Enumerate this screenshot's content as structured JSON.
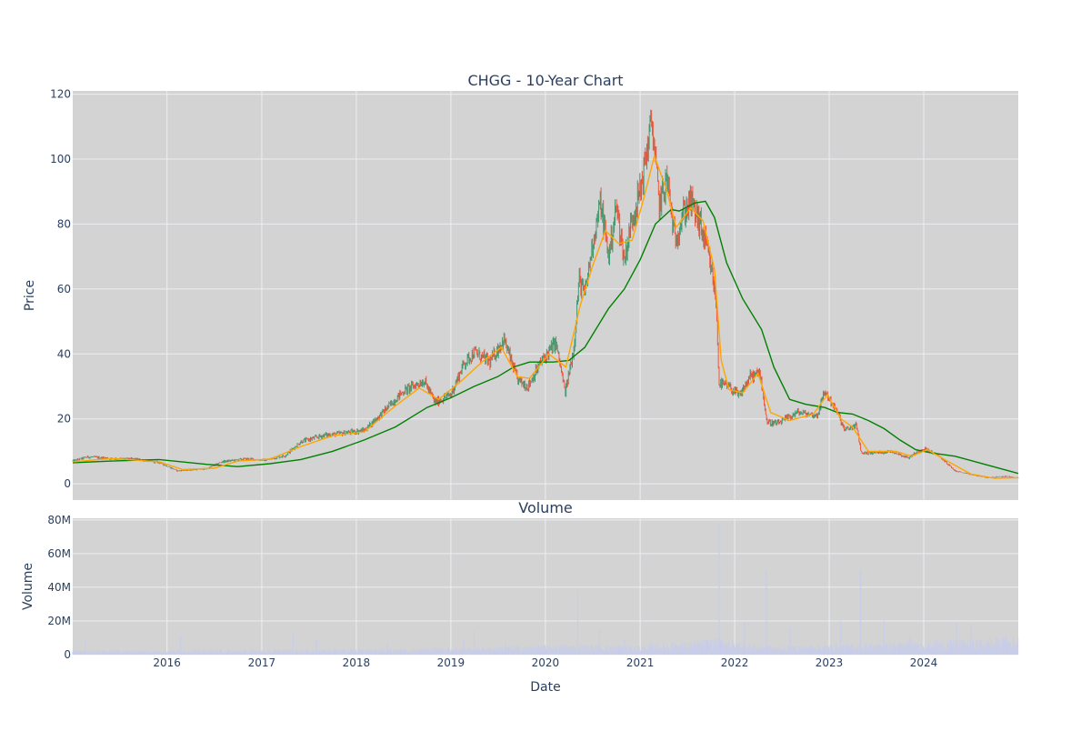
{
  "chart_data": [
    {
      "type": "candlestick",
      "title": "CHGG - 10-Year Chart",
      "xlabel": "",
      "ylabel": "Price",
      "xlim": [
        "2015-01-02",
        "2024-12-31"
      ],
      "ylim": [
        -5,
        121
      ],
      "y_ticks": [
        "0",
        "20",
        "40",
        "60",
        "80",
        "100",
        "120"
      ],
      "grid": true,
      "legend": "none",
      "colors": {
        "increasing": "#3d9970",
        "decreasing": "#ef553b",
        "ma_fast": "#ffa500",
        "ma_slow": "#008000",
        "background": "#d3d3d3",
        "grid": "#ebeef3"
      },
      "series": [
        {
          "kind": "approx_close_path",
          "points": [
            [
              "2015-01-02",
              7.0
            ],
            [
              "2015-03-01",
              8.3
            ],
            [
              "2015-06-01",
              7.8
            ],
            [
              "2015-09-01",
              7.6
            ],
            [
              "2015-12-01",
              6.6
            ],
            [
              "2016-02-10",
              4.0
            ],
            [
              "2016-04-01",
              4.3
            ],
            [
              "2016-06-01",
              4.6
            ],
            [
              "2016-08-01",
              6.8
            ],
            [
              "2016-11-01",
              7.7
            ],
            [
              "2017-01-15",
              7.3
            ],
            [
              "2017-04-01",
              8.7
            ],
            [
              "2017-06-01",
              13.0
            ],
            [
              "2017-09-01",
              15.0
            ],
            [
              "2017-11-01",
              15.5
            ],
            [
              "2018-02-01",
              16.5
            ],
            [
              "2018-04-01",
              21.0
            ],
            [
              "2018-07-01",
              28.5
            ],
            [
              "2018-09-20",
              31.8
            ],
            [
              "2018-11-01",
              25.0
            ],
            [
              "2019-01-01",
              27.5
            ],
            [
              "2019-02-20",
              37.0
            ],
            [
              "2019-04-01",
              40.5
            ],
            [
              "2019-06-01",
              37.5
            ],
            [
              "2019-07-25",
              44.5
            ],
            [
              "2019-09-15",
              32.0
            ],
            [
              "2019-10-25",
              30.0
            ],
            [
              "2019-12-15",
              37.5
            ],
            [
              "2020-02-10",
              43.5
            ],
            [
              "2020-03-18",
              28.0
            ],
            [
              "2020-04-20",
              42.0
            ],
            [
              "2020-05-10",
              63.0
            ],
            [
              "2020-06-01",
              58.0
            ],
            [
              "2020-07-01",
              74.0
            ],
            [
              "2020-08-01",
              86.5
            ],
            [
              "2020-09-01",
              70.0
            ],
            [
              "2020-10-01",
              85.5
            ],
            [
              "2020-11-01",
              69.0
            ],
            [
              "2020-12-01",
              82.0
            ],
            [
              "2021-01-01",
              90.0
            ],
            [
              "2021-02-15",
              112.0
            ],
            [
              "2021-03-15",
              86.0
            ],
            [
              "2021-04-15",
              94.0
            ],
            [
              "2021-05-15",
              75.0
            ],
            [
              "2021-06-15",
              83.0
            ],
            [
              "2021-07-15",
              87.0
            ],
            [
              "2021-08-20",
              80.0
            ],
            [
              "2021-09-20",
              71.0
            ],
            [
              "2021-10-20",
              58.0
            ],
            [
              "2021-11-02",
              31.0
            ],
            [
              "2021-12-15",
              29.5
            ],
            [
              "2022-01-20",
              27.0
            ],
            [
              "2022-03-01",
              33.0
            ],
            [
              "2022-04-10",
              34.0
            ],
            [
              "2022-05-05",
              19.0
            ],
            [
              "2022-06-15",
              18.5
            ],
            [
              "2022-09-01",
              22.0
            ],
            [
              "2022-11-15",
              21.0
            ],
            [
              "2022-12-15",
              28.5
            ],
            [
              "2023-02-01",
              22.0
            ],
            [
              "2023-03-01",
              16.5
            ],
            [
              "2023-04-15",
              18.0
            ],
            [
              "2023-05-05",
              9.5
            ],
            [
              "2023-06-15",
              9.5
            ],
            [
              "2023-09-01",
              10.0
            ],
            [
              "2023-11-01",
              8.0
            ],
            [
              "2024-01-01",
              11.0
            ],
            [
              "2024-03-01",
              8.5
            ],
            [
              "2024-05-01",
              4.0
            ],
            [
              "2024-07-01",
              2.8
            ],
            [
              "2024-09-01",
              1.9
            ],
            [
              "2024-11-15",
              2.3
            ],
            [
              "2024-12-31",
              1.8
            ]
          ]
        },
        {
          "name": "",
          "kind": "moving_average_fast",
          "color": "#ffa500",
          "points": [
            [
              "2015-01-02",
              6.8
            ],
            [
              "2015-06-01",
              7.8
            ],
            [
              "2015-12-01",
              6.8
            ],
            [
              "2016-03-01",
              4.4
            ],
            [
              "2016-07-01",
              4.8
            ],
            [
              "2016-10-01",
              7.0
            ],
            [
              "2017-02-01",
              7.6
            ],
            [
              "2017-06-01",
              11.5
            ],
            [
              "2017-10-01",
              14.8
            ],
            [
              "2018-02-01",
              16.0
            ],
            [
              "2018-06-01",
              24.0
            ],
            [
              "2018-09-01",
              29.5
            ],
            [
              "2018-11-15",
              26.0
            ],
            [
              "2019-02-01",
              31.0
            ],
            [
              "2019-05-01",
              37.5
            ],
            [
              "2019-07-15",
              42.0
            ],
            [
              "2019-09-15",
              33.0
            ],
            [
              "2019-11-01",
              32.5
            ],
            [
              "2020-01-15",
              40.0
            ],
            [
              "2020-03-20",
              36.0
            ],
            [
              "2020-05-15",
              55.0
            ],
            [
              "2020-07-01",
              67.0
            ],
            [
              "2020-08-20",
              78.0
            ],
            [
              "2020-10-10",
              74.0
            ],
            [
              "2020-12-01",
              75.0
            ],
            [
              "2021-01-15",
              88.0
            ],
            [
              "2021-02-25",
              101.0
            ],
            [
              "2021-04-15",
              90.0
            ],
            [
              "2021-05-20",
              79.0
            ],
            [
              "2021-07-15",
              85.0
            ],
            [
              "2021-09-01",
              81.0
            ],
            [
              "2021-10-15",
              66.0
            ],
            [
              "2021-11-10",
              38.0
            ],
            [
              "2021-12-10",
              29.0
            ],
            [
              "2022-02-01",
              28.0
            ],
            [
              "2022-04-01",
              34.0
            ],
            [
              "2022-05-20",
              22.0
            ],
            [
              "2022-08-01",
              19.5
            ],
            [
              "2022-11-01",
              21.5
            ],
            [
              "2022-12-25",
              27.5
            ],
            [
              "2023-02-15",
              20.0
            ],
            [
              "2023-04-01",
              17.5
            ],
            [
              "2023-06-01",
              10.0
            ],
            [
              "2023-09-15",
              10.0
            ],
            [
              "2023-11-15",
              8.5
            ],
            [
              "2024-01-15",
              10.5
            ],
            [
              "2024-04-01",
              7.0
            ],
            [
              "2024-07-01",
              3.0
            ],
            [
              "2024-10-01",
              1.7
            ],
            [
              "2024-12-31",
              1.9
            ]
          ]
        },
        {
          "name": "",
          "kind": "moving_average_slow",
          "color": "#008000",
          "points": [
            [
              "2015-01-02",
              6.5
            ],
            [
              "2015-06-01",
              7.0
            ],
            [
              "2015-12-01",
              7.5
            ],
            [
              "2016-06-01",
              6.0
            ],
            [
              "2016-10-01",
              5.3
            ],
            [
              "2017-02-01",
              6.2
            ],
            [
              "2017-06-01",
              7.5
            ],
            [
              "2017-10-01",
              10.0
            ],
            [
              "2018-02-01",
              13.5
            ],
            [
              "2018-06-01",
              17.5
            ],
            [
              "2018-10-01",
              23.5
            ],
            [
              "2019-01-01",
              26.5
            ],
            [
              "2019-04-01",
              30.0
            ],
            [
              "2019-07-01",
              33.0
            ],
            [
              "2019-09-01",
              36.0
            ],
            [
              "2019-11-01",
              37.5
            ],
            [
              "2020-02-01",
              37.5
            ],
            [
              "2020-04-01",
              38.0
            ],
            [
              "2020-06-01",
              42.0
            ],
            [
              "2020-09-01",
              54.0
            ],
            [
              "2020-11-01",
              60.0
            ],
            [
              "2021-01-01",
              69.0
            ],
            [
              "2021-03-01",
              80.0
            ],
            [
              "2021-05-01",
              84.5
            ],
            [
              "2021-06-01",
              84.0
            ],
            [
              "2021-08-01",
              86.5
            ],
            [
              "2021-09-10",
              87.0
            ],
            [
              "2021-10-15",
              82.0
            ],
            [
              "2021-12-01",
              68.0
            ],
            [
              "2022-02-01",
              57.0
            ],
            [
              "2022-04-15",
              47.5
            ],
            [
              "2022-06-01",
              36.0
            ],
            [
              "2022-08-01",
              26.0
            ],
            [
              "2022-10-01",
              24.5
            ],
            [
              "2022-12-15",
              23.5
            ],
            [
              "2023-02-01",
              22.0
            ],
            [
              "2023-04-01",
              21.5
            ],
            [
              "2023-06-01",
              19.5
            ],
            [
              "2023-08-01",
              17.0
            ],
            [
              "2023-10-01",
              13.5
            ],
            [
              "2023-12-01",
              10.5
            ],
            [
              "2024-02-01",
              9.5
            ],
            [
              "2024-05-01",
              8.5
            ],
            [
              "2024-08-01",
              6.5
            ],
            [
              "2024-11-01",
              4.5
            ],
            [
              "2024-12-31",
              3.2
            ]
          ]
        }
      ]
    },
    {
      "type": "bar",
      "title": "Volume",
      "xlabel": "Date",
      "ylabel": "Volume",
      "xlim": [
        "2015-01-02",
        "2024-12-31"
      ],
      "ylim": [
        0,
        81000000
      ],
      "y_ticks": [
        "0",
        "20M",
        "40M",
        "60M",
        "80M"
      ],
      "x_ticks": [
        "2016",
        "2017",
        "2018",
        "2019",
        "2020",
        "2021",
        "2022",
        "2023",
        "2024"
      ],
      "grid": true,
      "colors": {
        "bars": "#c8cde8",
        "background": "#d3d3d3"
      },
      "baseline_bands": [
        [
          "2015-01-02",
          1500000
        ],
        [
          "2017-01-01",
          1700000
        ],
        [
          "2018-01-01",
          2000000
        ],
        [
          "2019-01-01",
          2500000
        ],
        [
          "2020-04-01",
          3500000
        ],
        [
          "2021-01-01",
          3000000
        ],
        [
          "2021-11-01",
          5500000
        ],
        [
          "2022-06-01",
          3000000
        ],
        [
          "2023-01-01",
          3500000
        ],
        [
          "2024-01-01",
          4500000
        ],
        [
          "2024-12-31",
          6000000
        ]
      ],
      "spikes": [
        [
          "2015-02-20",
          10000000
        ],
        [
          "2016-02-22",
          11000000
        ],
        [
          "2017-05-02",
          13000000
        ],
        [
          "2017-08-01",
          9000000
        ],
        [
          "2018-05-01",
          7000000
        ],
        [
          "2019-02-20",
          9000000
        ],
        [
          "2019-04-01",
          14000000
        ],
        [
          "2019-07-30",
          8000000
        ],
        [
          "2020-05-05",
          38000000
        ],
        [
          "2020-07-28",
          15000000
        ],
        [
          "2020-11-02",
          9000000
        ],
        [
          "2021-02-09",
          8000000
        ],
        [
          "2021-05-03",
          7000000
        ],
        [
          "2021-11-02",
          78000000
        ],
        [
          "2021-12-10",
          8000000
        ],
        [
          "2022-02-08",
          19000000
        ],
        [
          "2022-05-03",
          50000000
        ],
        [
          "2022-08-02",
          16000000
        ],
        [
          "2023-02-14",
          20000000
        ],
        [
          "2023-05-02",
          50000000
        ],
        [
          "2023-08-01",
          20000000
        ],
        [
          "2023-11-07",
          10000000
        ],
        [
          "2024-02-20",
          9000000
        ],
        [
          "2024-05-07",
          19000000
        ],
        [
          "2024-07-01",
          18000000
        ],
        [
          "2024-11-12",
          12000000
        ]
      ]
    }
  ]
}
